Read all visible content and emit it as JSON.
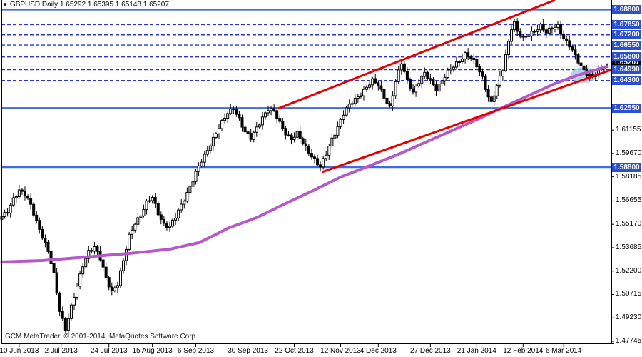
{
  "window": {
    "title_symbol": "GBPUSD,Daily",
    "title_ohlc": "1.65292 1.65395 1.65148 1.65207"
  },
  "icons": {
    "symbol_dropdown": "▼"
  },
  "footer": {
    "copyright": "GCM MetaTrader, © 2001-2014, MetaQuotes Software Corp."
  },
  "colors": {
    "level_solid": "#4169e1",
    "level_dashed": "#2b35cc",
    "badge_blue": "#2b50cf",
    "badge_black": "#000000",
    "trendline": "#e60000",
    "ma": "#b45ac8",
    "ellipse": "#a8cce6",
    "price_line": "#bbbbbb",
    "candle_up": "#ffffff",
    "candle_down": "#000000",
    "outline": "#000000"
  },
  "chart_data": {
    "type": "candlestick-ohlc",
    "symbol": "GBPUSD",
    "timeframe": "Daily",
    "last_bar": {
      "open": 1.65292,
      "high": 1.65395,
      "low": 1.65148,
      "close": 1.65207
    },
    "bar_count": 210,
    "y_axis": {
      "ylim": [
        1.4761,
        1.6941
      ],
      "visible_ticks": [
        {
          "label": "1.61155",
          "price": 1.61155
        },
        {
          "label": "1.59670",
          "price": 1.5967
        },
        {
          "label": "1.58185",
          "price": 1.58185
        },
        {
          "label": "1.56655",
          "price": 1.56655
        },
        {
          "label": "1.55170",
          "price": 1.5517
        },
        {
          "label": "1.53685",
          "price": 1.53685
        },
        {
          "label": "1.52200",
          "price": 1.522
        },
        {
          "label": "1.50715",
          "price": 1.50715
        },
        {
          "label": "1.49230",
          "price": 1.4923
        },
        {
          "label": "1.47745",
          "price": 1.47745
        }
      ]
    },
    "x_axis": {
      "ticks": [
        {
          "label": "10 Jun 2013",
          "bar": 6
        },
        {
          "label": "2 Jul 2013",
          "bar": 20.5
        },
        {
          "label": "24 Jul 2013",
          "bar": 37
        },
        {
          "label": "15 Aug 2013",
          "bar": 52
        },
        {
          "label": "6 Sep 2013",
          "bar": 67
        },
        {
          "label": "30 Sep 2013",
          "bar": 85
        },
        {
          "label": "22 Oct 2013",
          "bar": 101
        },
        {
          "label": "12 Nov 2013",
          "bar": 117
        },
        {
          "label": "4 Dec 2013",
          "bar": 130
        },
        {
          "label": "27 Dec 2013",
          "bar": 148
        },
        {
          "label": "21 Jan 2014",
          "bar": 164
        },
        {
          "label": "12 Feb 2014",
          "bar": 180
        },
        {
          "label": "6 Mar 2014",
          "bar": 194
        }
      ]
    },
    "levels": [
      {
        "price": 1.688,
        "label": "1.68800",
        "line": "solid"
      },
      {
        "price": 1.6785,
        "label": "1.67850",
        "line": "dashed"
      },
      {
        "price": 1.672,
        "label": "1.67200",
        "line": "dashed"
      },
      {
        "price": 1.6655,
        "label": "1.66550",
        "line": "dashed"
      },
      {
        "price": 1.658,
        "label": "1.65800",
        "line": "dashed"
      },
      {
        "price": 1.6499,
        "label": "1.64990",
        "line": "dashed"
      },
      {
        "price": 1.643,
        "label": "1.64300",
        "line": "dashed"
      },
      {
        "price": 1.6255,
        "label": "1.62550",
        "line": "solid"
      },
      {
        "price": 1.588,
        "label": "1.58800",
        "line": "solid"
      }
    ],
    "current_price": {
      "price": 1.65207,
      "label": "1.65207"
    },
    "close_anchors": [
      [
        0,
        1.556
      ],
      [
        2,
        1.56
      ],
      [
        4,
        1.5685
      ],
      [
        6,
        1.573
      ],
      [
        8,
        1.57
      ],
      [
        10,
        1.564
      ],
      [
        12,
        1.554
      ],
      [
        14,
        1.544
      ],
      [
        16,
        1.534
      ],
      [
        18,
        1.5195
      ],
      [
        20,
        1.4975
      ],
      [
        22,
        1.4855
      ],
      [
        24,
        1.499
      ],
      [
        26,
        1.512
      ],
      [
        28,
        1.526
      ],
      [
        30,
        1.535
      ],
      [
        32,
        1.537
      ],
      [
        34,
        1.5295
      ],
      [
        36,
        1.5175
      ],
      [
        38,
        1.5095
      ],
      [
        40,
        1.514
      ],
      [
        42,
        1.528
      ],
      [
        44,
        1.544
      ],
      [
        46,
        1.553
      ],
      [
        48,
        1.558
      ],
      [
        50,
        1.565
      ],
      [
        52,
        1.5685
      ],
      [
        54,
        1.559
      ],
      [
        56,
        1.552
      ],
      [
        58,
        1.55
      ],
      [
        60,
        1.556
      ],
      [
        62,
        1.564
      ],
      [
        64,
        1.572
      ],
      [
        66,
        1.58
      ],
      [
        68,
        1.588
      ],
      [
        70,
        1.595
      ],
      [
        72,
        1.603
      ],
      [
        74,
        1.61
      ],
      [
        76,
        1.616
      ],
      [
        78,
        1.622
      ],
      [
        80,
        1.6258
      ],
      [
        82,
        1.619
      ],
      [
        84,
        1.61
      ],
      [
        86,
        1.606
      ],
      [
        88,
        1.613
      ],
      [
        90,
        1.62
      ],
      [
        92,
        1.625
      ],
      [
        94,
        1.623
      ],
      [
        96,
        1.616
      ],
      [
        98,
        1.61
      ],
      [
        100,
        1.606
      ],
      [
        102,
        1.609
      ],
      [
        104,
        1.603
      ],
      [
        106,
        1.598
      ],
      [
        108,
        1.593
      ],
      [
        110,
        1.5878
      ],
      [
        112,
        1.596
      ],
      [
        114,
        1.606
      ],
      [
        116,
        1.614
      ],
      [
        118,
        1.622
      ],
      [
        120,
        1.627
      ],
      [
        122,
        1.631
      ],
      [
        124,
        1.635
      ],
      [
        126,
        1.639
      ],
      [
        128,
        1.6425
      ],
      [
        130,
        1.64
      ],
      [
        132,
        1.633
      ],
      [
        134,
        1.6262
      ],
      [
        136,
        1.642
      ],
      [
        138,
        1.654
      ],
      [
        140,
        1.643
      ],
      [
        142,
        1.636
      ],
      [
        144,
        1.642
      ],
      [
        146,
        1.647
      ],
      [
        148,
        1.643
      ],
      [
        150,
        1.638
      ],
      [
        152,
        1.643
      ],
      [
        154,
        1.648
      ],
      [
        156,
        1.652
      ],
      [
        158,
        1.656
      ],
      [
        160,
        1.66
      ],
      [
        162,
        1.657
      ],
      [
        164,
        1.652
      ],
      [
        166,
        1.645
      ],
      [
        168,
        1.633
      ],
      [
        169,
        1.629
      ],
      [
        171,
        1.639
      ],
      [
        173,
        1.65
      ],
      [
        175,
        1.668
      ],
      [
        176,
        1.677
      ],
      [
        177,
        1.68
      ],
      [
        178,
        1.674
      ],
      [
        180,
        1.669
      ],
      [
        182,
        1.672
      ],
      [
        184,
        1.675
      ],
      [
        186,
        1.678
      ],
      [
        188,
        1.673
      ],
      [
        190,
        1.676
      ],
      [
        192,
        1.678
      ],
      [
        194,
        1.67
      ],
      [
        196,
        1.665
      ],
      [
        198,
        1.658
      ],
      [
        200,
        1.652
      ],
      [
        202,
        1.648
      ],
      [
        204,
        1.645
      ],
      [
        206,
        1.649
      ],
      [
        208,
        1.6515
      ],
      [
        209,
        1.65207
      ]
    ],
    "moving_average": {
      "style": "long-period",
      "points": [
        [
          0,
          1.5278
        ],
        [
          14,
          1.5287
        ],
        [
          29,
          1.5309
        ],
        [
          44,
          1.5332
        ],
        [
          58,
          1.5359
        ],
        [
          68,
          1.54
        ],
        [
          73,
          1.5444
        ],
        [
          78,
          1.5491
        ],
        [
          88,
          1.5559
        ],
        [
          98,
          1.5649
        ],
        [
          108,
          1.5735
        ],
        [
          117,
          1.5817
        ],
        [
          127,
          1.5889
        ],
        [
          137,
          1.5962
        ],
        [
          147,
          1.6044
        ],
        [
          157,
          1.6125
        ],
        [
          167,
          1.6207
        ],
        [
          172,
          1.6252
        ],
        [
          177,
          1.6293
        ],
        [
          184,
          1.6352
        ],
        [
          191,
          1.6411
        ],
        [
          199,
          1.6465
        ],
        [
          204,
          1.6492
        ],
        [
          209,
          1.6519
        ]
      ]
    },
    "trendlines": [
      {
        "name": "upper",
        "from": [
          95.5,
          1.6253
        ],
        "to": [
          191,
          1.6941
        ]
      },
      {
        "name": "lower",
        "from": [
          110.6,
          1.5849
        ],
        "to": [
          220,
          1.656
        ]
      }
    ],
    "ellipse": {
      "bar": 201,
      "price": 1.6465,
      "rx_bars": 4.5,
      "ry_price": 0.005
    }
  }
}
